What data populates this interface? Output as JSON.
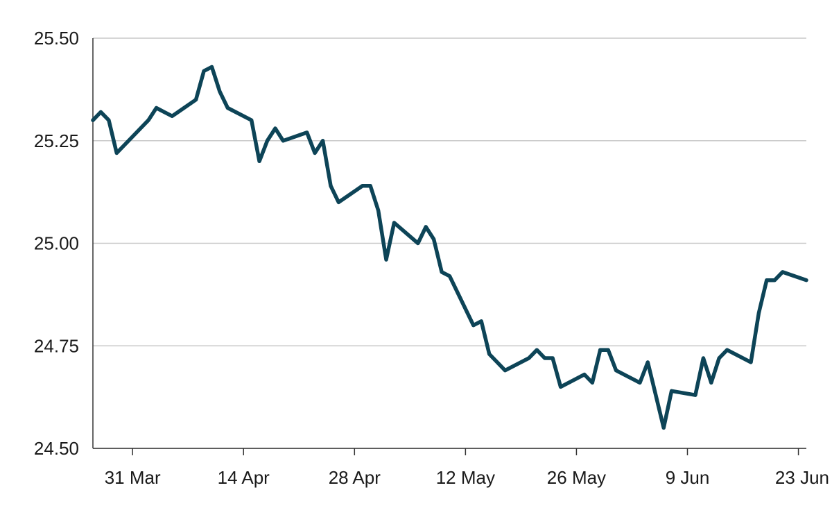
{
  "chart_data": {
    "type": "line",
    "title": "",
    "xlabel": "",
    "ylabel": "",
    "xlim": [
      "2025-03-26",
      "2025-06-24"
    ],
    "ylim": [
      24.5,
      25.5
    ],
    "y_ticks": [
      "25.50",
      "25.25",
      "25.00",
      "24.75",
      "24.50"
    ],
    "x_ticks": [
      {
        "date": "2025-03-31",
        "label": "31 Mar"
      },
      {
        "date": "2025-04-14",
        "label": "14 Apr"
      },
      {
        "date": "2025-04-28",
        "label": "28 Apr"
      },
      {
        "date": "2025-05-12",
        "label": "12 May"
      },
      {
        "date": "2025-05-26",
        "label": "26 May"
      },
      {
        "date": "2025-06-09",
        "label": "9 Jun"
      },
      {
        "date": "2025-06-23",
        "label": "23 Jun"
      }
    ],
    "grid": "horizontal",
    "legend": "none",
    "series": [
      {
        "color": "#0d4457",
        "x": [
          "2025-03-26",
          "2025-03-27",
          "2025-03-28",
          "2025-03-29",
          "2025-04-01",
          "2025-04-02",
          "2025-04-03",
          "2025-04-04",
          "2025-04-05",
          "2025-04-08",
          "2025-04-09",
          "2025-04-10",
          "2025-04-11",
          "2025-04-12",
          "2025-04-15",
          "2025-04-16",
          "2025-04-17",
          "2025-04-18",
          "2025-04-19",
          "2025-04-22",
          "2025-04-23",
          "2025-04-24",
          "2025-04-25",
          "2025-04-26",
          "2025-04-29",
          "2025-04-30",
          "2025-05-01",
          "2025-05-02",
          "2025-05-03",
          "2025-05-06",
          "2025-05-07",
          "2025-05-08",
          "2025-05-09",
          "2025-05-10",
          "2025-05-13",
          "2025-05-14",
          "2025-05-15",
          "2025-05-16",
          "2025-05-17",
          "2025-05-20",
          "2025-05-21",
          "2025-05-22",
          "2025-05-23",
          "2025-05-24",
          "2025-05-27",
          "2025-05-28",
          "2025-05-29",
          "2025-05-30",
          "2025-05-31",
          "2025-06-03",
          "2025-06-04",
          "2025-06-05",
          "2025-06-06",
          "2025-06-07",
          "2025-06-10",
          "2025-06-11",
          "2025-06-12",
          "2025-06-13",
          "2025-06-14",
          "2025-06-17",
          "2025-06-18",
          "2025-06-19",
          "2025-06-20",
          "2025-06-21",
          "2025-06-24"
        ],
        "y": [
          25.3,
          25.32,
          25.3,
          25.22,
          25.28,
          25.3,
          25.33,
          25.32,
          25.31,
          25.35,
          25.42,
          25.43,
          25.37,
          25.33,
          25.3,
          25.2,
          25.25,
          25.28,
          25.25,
          25.27,
          25.22,
          25.25,
          25.14,
          25.1,
          25.14,
          25.14,
          25.08,
          24.96,
          25.05,
          25.0,
          25.04,
          25.01,
          24.93,
          24.92,
          24.8,
          24.81,
          24.73,
          24.71,
          24.69,
          24.72,
          24.74,
          24.72,
          24.72,
          24.65,
          24.68,
          24.66,
          24.74,
          24.74,
          24.69,
          24.66,
          24.71,
          24.63,
          24.55,
          24.64,
          24.63,
          24.72,
          24.66,
          24.72,
          24.74,
          24.71,
          24.83,
          24.91,
          24.91,
          24.93,
          24.91
        ]
      }
    ]
  }
}
